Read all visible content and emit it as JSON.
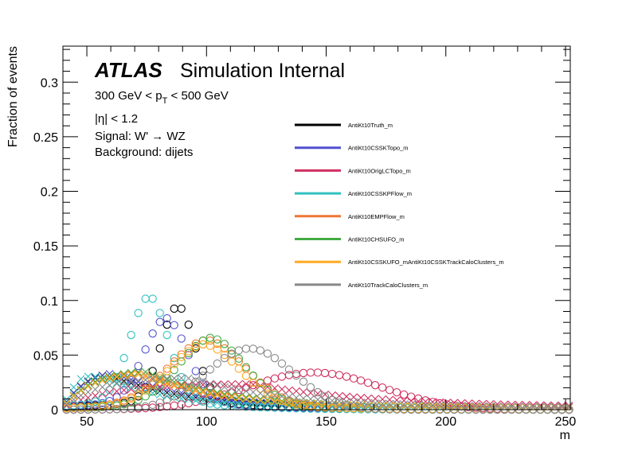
{
  "chart_data": {
    "type": "scatter",
    "title": "",
    "xlabel": "m",
    "ylabel": "Fraction of events",
    "xlim": [
      40,
      252
    ],
    "ylim": [
      0,
      0.333
    ],
    "x_ticks": [
      {
        "value": 50,
        "label": "50"
      },
      {
        "value": 100,
        "label": "100"
      },
      {
        "value": 150,
        "label": "150"
      },
      {
        "value": 200,
        "label": "200"
      },
      {
        "value": 250,
        "label": "250"
      }
    ],
    "y_ticks": [
      {
        "value": 0,
        "label": "0"
      },
      {
        "value": 0.05,
        "label": "0.05"
      },
      {
        "value": 0.1,
        "label": "0.1"
      },
      {
        "value": 0.15,
        "label": "0.15"
      },
      {
        "value": 0.2,
        "label": "0.2"
      },
      {
        "value": 0.25,
        "label": "0.25"
      },
      {
        "value": 0.3,
        "label": "0.3"
      }
    ],
    "annotations": {
      "atlas": "ATLAS",
      "status": "Simulation Internal",
      "pt_prefix": "300 GeV < p",
      "pt_sub": "T",
      "pt_suffix": " < 500 GeV",
      "eta": "|η| < 1.2",
      "signal": "Signal: W' → WZ",
      "background": "Background: dijets"
    },
    "legend_position": "top-right",
    "series": [
      {
        "name": "AntiKt10Truth_m",
        "color": "#000000",
        "signal": {
          "mu": 88,
          "sigma": 7,
          "amp": 0.083,
          "tail": 0.012,
          "taus": 30
        },
        "background": {
          "peak": 56,
          "rise": 10,
          "tau": 28,
          "amp": 0.037
        }
      },
      {
        "name": "AntiKt10CSSKTopo_m",
        "color": "#5050d0",
        "signal": {
          "mu": 83,
          "sigma": 9,
          "amp": 0.072,
          "tail": 0.012,
          "taus": 30
        },
        "background": {
          "peak": 60,
          "rise": 10,
          "tau": 30,
          "amp": 0.036
        }
      },
      {
        "name": "AntiKt10OrigLCTopo_m",
        "color": "#d03060",
        "signal": {
          "mu": 145,
          "sigma": 28,
          "amp": 0.034,
          "tail": 0.0,
          "taus": 30
        },
        "background": {
          "peak": 118,
          "rise": 20,
          "tau": 52,
          "amp": 0.022
        }
      },
      {
        "name": "AntiKt10CSSKPFlow_m",
        "color": "#30c0c0",
        "signal": {
          "mu": 76,
          "sigma": 8,
          "amp": 0.09,
          "tail": 0.014,
          "taus": 25
        },
        "background": {
          "peak": 48,
          "rise": 8,
          "tau": 25,
          "amp": 0.043
        }
      },
      {
        "name": "AntiKt10EMPFlow_m",
        "color": "#ee7733",
        "signal": {
          "mu": 100,
          "sigma": 16,
          "amp": 0.054,
          "tail": 0.01,
          "taus": 30
        },
        "background": {
          "peak": 72,
          "rise": 12,
          "tau": 32,
          "amp": 0.034
        }
      },
      {
        "name": "AntiKt10CHSUFO_m",
        "color": "#44aa44",
        "signal": {
          "mu": 102,
          "sigma": 14,
          "amp": 0.056,
          "tail": 0.01,
          "taus": 30
        },
        "background": {
          "peak": 74,
          "rise": 12,
          "tau": 32,
          "amp": 0.035
        }
      },
      {
        "name": "AntiKt10CSSKUFO_mAntiKt10CSSKTrackCaloClusters_m",
        "color": "#ffaa22",
        "signal": {
          "mu": 99,
          "sigma": 15,
          "amp": 0.05,
          "tail": 0.01,
          "taus": 30
        },
        "background": {
          "peak": 71,
          "rise": 12,
          "tau": 32,
          "amp": 0.033
        }
      },
      {
        "name": "AntiKt10TrackCaloClusters_m",
        "color": "#888888",
        "signal": {
          "mu": 118,
          "sigma": 18,
          "amp": 0.056,
          "tail": 0.0,
          "taus": 30
        },
        "background": {
          "peak": 92,
          "rise": 15,
          "tau": 40,
          "amp": 0.028
        }
      }
    ]
  }
}
